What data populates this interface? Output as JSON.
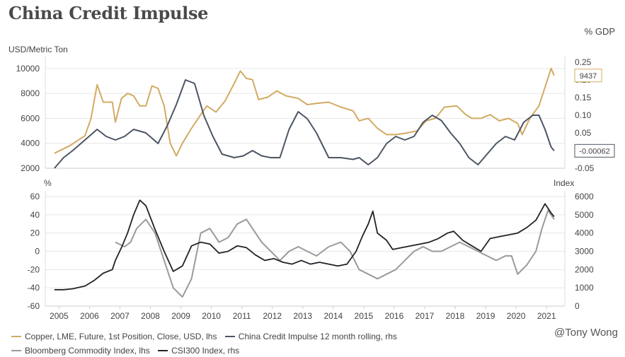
{
  "header": {
    "title": "China Credit Impulse",
    "unit_right_top": "% GDP",
    "unit_left_top": "USD/Metric Ton",
    "unit_left_bottom": "%",
    "unit_right_bottom": "Index"
  },
  "colors": {
    "copper": "#d2ab62",
    "impulse": "#4b5563",
    "bcom": "#9a9a9a",
    "csi": "#1f2328",
    "grid": "#e6e6e6"
  },
  "watermark": "@Tony Wong",
  "legend": [
    {
      "label": "Copper, LME, Future, 1st Position, Close, USD, lhs",
      "color_key": "copper"
    },
    {
      "label": "China Credit Impulse 12 month rolling, rhs",
      "color_key": "impulse"
    },
    {
      "label": "Bloomberg Commodity Index, lhs",
      "color_key": "bcom"
    },
    {
      "label": "CSI300 Index, rhs",
      "color_key": "csi"
    }
  ],
  "chart_data": [
    {
      "type": "line",
      "title": "China Credit Impulse",
      "xlabel": "",
      "ylabel": "USD/Metric Ton",
      "y2label": "% GDP",
      "ylim": [
        2000,
        10500
      ],
      "y2lim": [
        -0.05,
        0.25
      ],
      "yticks": [
        "2000",
        "4000",
        "6000",
        "8000",
        "10000"
      ],
      "y2ticks": [
        "-0.05",
        "0.00",
        "0.05",
        "0.10",
        "0.15",
        "0.20",
        "0.25"
      ],
      "end_labels": {
        "copper": "9437",
        "impulse": "-0.00062"
      },
      "series": [
        {
          "name": "Copper, LME, Future, 1st Position, Close, USD, lhs",
          "axis": "left",
          "color_key": "copper",
          "x": [
            2005.0,
            2005.5,
            2006.0,
            2006.2,
            2006.4,
            2006.6,
            2006.9,
            2007.0,
            2007.2,
            2007.4,
            2007.6,
            2007.8,
            2008.0,
            2008.2,
            2008.4,
            2008.6,
            2008.8,
            2009.0,
            2009.2,
            2009.5,
            2009.8,
            2010.0,
            2010.3,
            2010.6,
            2010.9,
            2011.1,
            2011.3,
            2011.5,
            2011.7,
            2012.0,
            2012.3,
            2012.6,
            2013.0,
            2013.3,
            2013.6,
            2014.0,
            2014.4,
            2014.8,
            2015.0,
            2015.3,
            2015.6,
            2015.9,
            2016.2,
            2016.5,
            2016.9,
            2017.2,
            2017.5,
            2017.8,
            2018.2,
            2018.5,
            2018.7,
            2019.0,
            2019.3,
            2019.6,
            2019.9,
            2020.2,
            2020.35,
            2020.6,
            2020.9,
            2021.1,
            2021.3,
            2021.4
          ],
          "values": [
            3200,
            3800,
            4600,
            6000,
            8700,
            7300,
            7300,
            5700,
            7600,
            8000,
            7800,
            7000,
            7000,
            8600,
            8400,
            7000,
            4000,
            3000,
            4000,
            5200,
            6300,
            7000,
            6500,
            7400,
            8800,
            9800,
            9200,
            9100,
            7500,
            7700,
            8200,
            7800,
            7600,
            7100,
            7200,
            7300,
            6900,
            6600,
            5800,
            6000,
            5200,
            4700,
            4700,
            4800,
            5000,
            5800,
            6000,
            6900,
            7000,
            6300,
            6000,
            6000,
            6300,
            5800,
            6000,
            5600,
            4700,
            6000,
            7000,
            8500,
            10000,
            9437
          ]
        },
        {
          "name": "China Credit Impulse 12 month rolling, rhs",
          "axis": "right",
          "color_key": "impulse",
          "x": [
            2005.0,
            2005.3,
            2005.6,
            2006.0,
            2006.4,
            2006.7,
            2007.0,
            2007.3,
            2007.6,
            2008.0,
            2008.4,
            2008.7,
            2009.0,
            2009.3,
            2009.6,
            2009.9,
            2010.2,
            2010.5,
            2010.9,
            2011.2,
            2011.5,
            2011.8,
            2012.1,
            2012.4,
            2012.7,
            2013.0,
            2013.3,
            2013.6,
            2014.0,
            2014.4,
            2014.8,
            2015.0,
            2015.3,
            2015.6,
            2015.9,
            2016.2,
            2016.5,
            2016.8,
            2017.1,
            2017.4,
            2017.7,
            2018.0,
            2018.3,
            2018.6,
            2018.9,
            2019.2,
            2019.5,
            2019.8,
            2020.1,
            2020.4,
            2020.7,
            2020.9,
            2021.1,
            2021.3,
            2021.4
          ],
          "values": [
            -0.05,
            -0.02,
            0.0,
            0.03,
            0.06,
            0.04,
            0.03,
            0.04,
            0.06,
            0.05,
            0.02,
            0.07,
            0.13,
            0.2,
            0.19,
            0.1,
            0.04,
            -0.01,
            -0.02,
            -0.015,
            0.0,
            -0.015,
            -0.02,
            -0.02,
            0.06,
            0.11,
            0.09,
            0.05,
            -0.02,
            -0.02,
            -0.025,
            -0.02,
            -0.04,
            -0.02,
            0.02,
            0.04,
            0.03,
            0.04,
            0.08,
            0.1,
            0.085,
            0.05,
            0.02,
            -0.02,
            -0.04,
            -0.01,
            0.02,
            0.04,
            0.03,
            0.08,
            0.1,
            0.1,
            0.06,
            0.01,
            -0.00062
          ]
        }
      ]
    },
    {
      "type": "line",
      "title": "",
      "xlabel": "",
      "ylabel": "%",
      "y2label": "Index",
      "ylim": [
        -60,
        60
      ],
      "y2lim": [
        0,
        6000
      ],
      "yticks": [
        "-60",
        "-40",
        "-20",
        "0",
        "20",
        "40",
        "60"
      ],
      "y2ticks": [
        "0",
        "1000",
        "2000",
        "3000",
        "4000",
        "5000",
        "6000"
      ],
      "xticks": [
        "2005",
        "2006",
        "2007",
        "2008",
        "2009",
        "2010",
        "2011",
        "2012",
        "2013",
        "2014",
        "2015",
        "2016",
        "2017",
        "2018",
        "2019",
        "2020",
        "2021"
      ],
      "series": [
        {
          "name": "Bloomberg Commodity Index, lhs",
          "axis": "left",
          "color_key": "bcom",
          "x": [
            2007.0,
            2007.3,
            2007.5,
            2007.7,
            2008.0,
            2008.3,
            2008.6,
            2008.9,
            2009.2,
            2009.5,
            2009.8,
            2010.1,
            2010.4,
            2010.7,
            2011.0,
            2011.3,
            2011.5,
            2011.8,
            2012.1,
            2012.4,
            2012.7,
            2013.0,
            2013.3,
            2013.6,
            2014.0,
            2014.4,
            2014.7,
            2015.0,
            2015.3,
            2015.6,
            2015.9,
            2016.2,
            2016.5,
            2016.8,
            2017.1,
            2017.4,
            2017.7,
            2018.0,
            2018.3,
            2018.6,
            2018.9,
            2019.2,
            2019.5,
            2019.8,
            2020.0,
            2020.2,
            2020.5,
            2020.8,
            2021.0,
            2021.2,
            2021.4
          ],
          "values": [
            10,
            5,
            10,
            25,
            35,
            20,
            -10,
            -40,
            -50,
            -30,
            20,
            25,
            10,
            15,
            30,
            35,
            25,
            10,
            0,
            -10,
            0,
            5,
            0,
            -5,
            5,
            10,
            0,
            -20,
            -25,
            -30,
            -25,
            -20,
            -10,
            0,
            5,
            0,
            0,
            5,
            10,
            5,
            0,
            -5,
            -10,
            -5,
            -5,
            -25,
            -15,
            0,
            25,
            45,
            35
          ]
        },
        {
          "name": "CSI300 Index, rhs",
          "axis": "right",
          "color_key": "csi",
          "x": [
            2005.0,
            2005.3,
            2005.6,
            2006.0,
            2006.3,
            2006.6,
            2006.9,
            2007.0,
            2007.2,
            2007.4,
            2007.6,
            2007.8,
            2008.0,
            2008.3,
            2008.6,
            2008.9,
            2009.2,
            2009.5,
            2009.8,
            2010.1,
            2010.4,
            2010.7,
            2011.0,
            2011.3,
            2011.6,
            2011.9,
            2012.2,
            2012.5,
            2012.8,
            2013.1,
            2013.4,
            2013.7,
            2014.0,
            2014.3,
            2014.6,
            2014.9,
            2015.1,
            2015.3,
            2015.45,
            2015.6,
            2015.9,
            2016.1,
            2016.4,
            2016.7,
            2017.0,
            2017.3,
            2017.6,
            2017.9,
            2018.1,
            2018.4,
            2018.7,
            2019.0,
            2019.3,
            2019.6,
            2019.9,
            2020.2,
            2020.5,
            2020.8,
            2021.0,
            2021.1,
            2021.3,
            2021.4
          ],
          "values": [
            900,
            900,
            950,
            1100,
            1400,
            1800,
            2000,
            2500,
            3200,
            4000,
            5000,
            5800,
            5500,
            4200,
            3000,
            1900,
            2200,
            3300,
            3500,
            3400,
            2900,
            3000,
            3300,
            3200,
            2800,
            2500,
            2600,
            2400,
            2300,
            2500,
            2300,
            2400,
            2300,
            2200,
            2300,
            3000,
            3800,
            4500,
            5200,
            4000,
            3600,
            3100,
            3200,
            3300,
            3400,
            3500,
            3700,
            4000,
            4100,
            3600,
            3300,
            3000,
            3700,
            3800,
            3900,
            4000,
            4300,
            4700,
            5300,
            5600,
            5100,
            4900
          ]
        }
      ]
    }
  ]
}
